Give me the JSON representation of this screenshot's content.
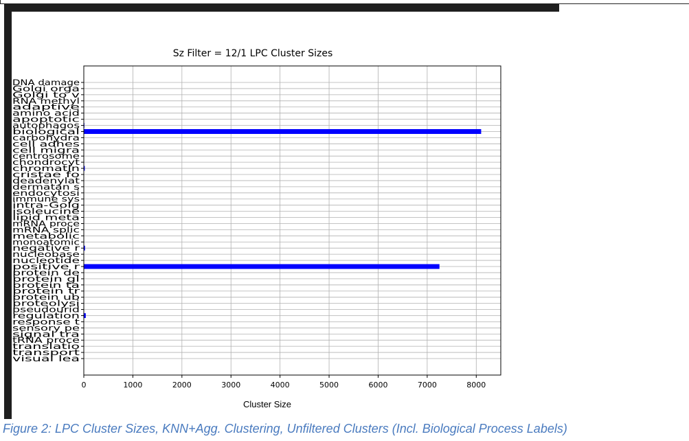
{
  "caption": "Figure 2: LPC Cluster Sizes, KNN+Agg. Clustering, Unfiltered Clusters (Incl. Biological Process Labels)",
  "chart_data": {
    "type": "bar",
    "orientation": "horizontal",
    "title": "Sz Filter = 12/1 LPC Cluster Sizes",
    "xlabel": "Cluster Size",
    "ylabel": "",
    "xlim": [
      0,
      8500
    ],
    "xticks": [
      0,
      1000,
      2000,
      3000,
      4000,
      5000,
      6000,
      7000,
      8000
    ],
    "grid": true,
    "bar_color": "#0000ff",
    "categories": [
      "DNA damage",
      "Golgi orga",
      "Golgi to v",
      "RNA methyl",
      "adaptive ",
      "amino acid",
      "apoptotic ",
      "autophagos",
      "biological",
      "carbohydra",
      "cell adhes",
      "cell migra",
      "centrosome",
      "chondrocyt",
      "chromatin ",
      "cristae fo",
      "deadenylat",
      "dermatan s",
      "endocytosi",
      "immune sys",
      "intra-Golg",
      "isoleucine",
      "lipid meta",
      "mRNA proce",
      "mRNA splic",
      "metabolic ",
      "monoatomic",
      "negative r",
      "nucleobase",
      "nucleotide",
      "positive r",
      "protein de",
      "protein gl",
      "protein ta",
      "protein tr",
      "protein ub",
      "proteolysi",
      "pseudourid",
      "regulation",
      "response t",
      "sensory pe",
      "signal tra",
      "tRNA proce",
      "translatio",
      "transport ",
      "visual lea"
    ],
    "values": [
      1,
      1,
      1,
      1,
      1,
      1,
      1,
      12,
      8100,
      1,
      1,
      1,
      1,
      1,
      20,
      1,
      1,
      1,
      1,
      1,
      1,
      1,
      1,
      1,
      1,
      1,
      1,
      25,
      1,
      1,
      7250,
      1,
      1,
      1,
      1,
      1,
      1,
      1,
      40,
      1,
      1,
      1,
      1,
      1,
      1,
      1
    ]
  }
}
